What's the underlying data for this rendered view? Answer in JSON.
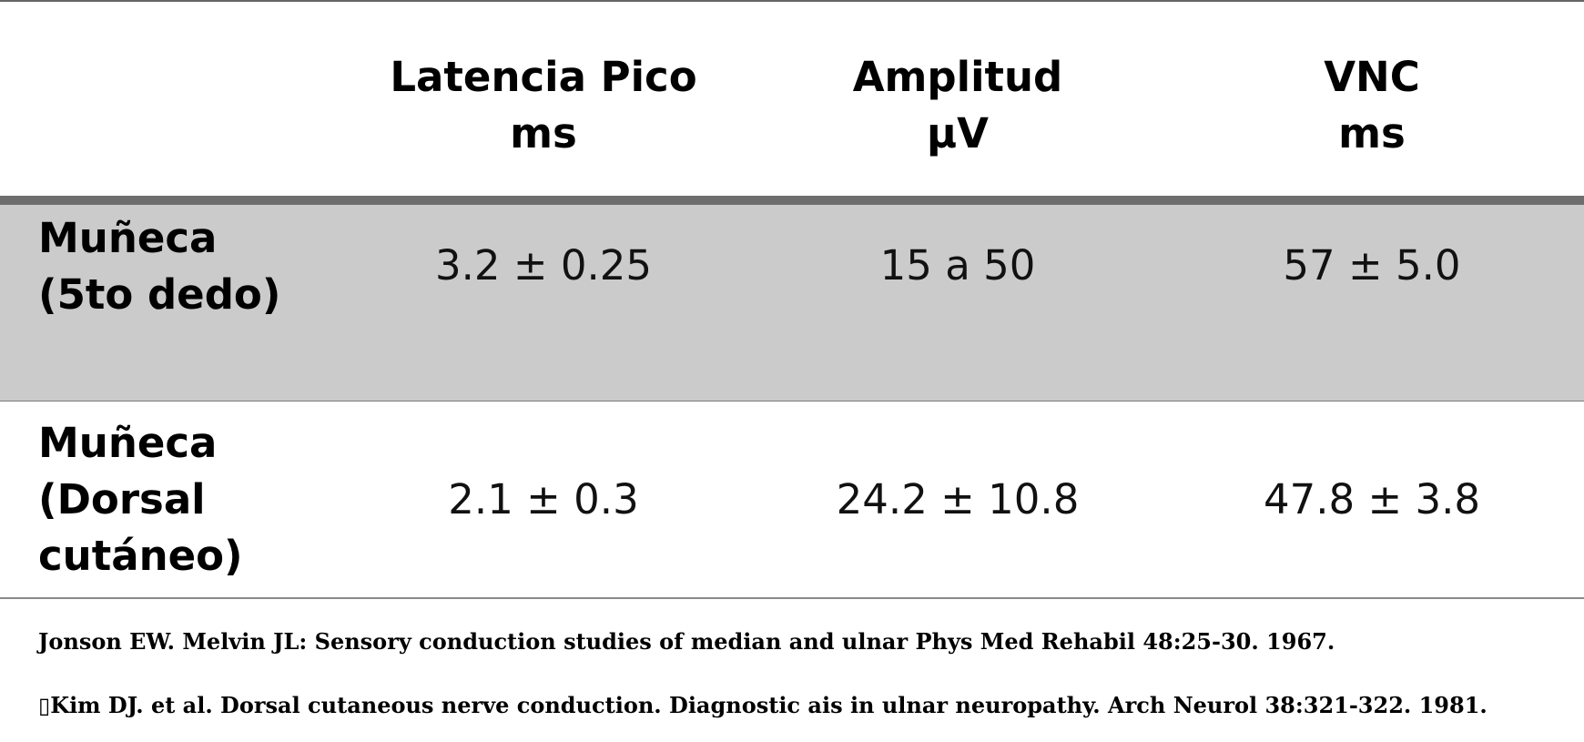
{
  "table": {
    "headers": [
      {
        "line1": "Latencia Pico",
        "line2": "ms"
      },
      {
        "line1": "Amplitud",
        "line2": "μV"
      },
      {
        "line1": "VNC",
        "line2": "ms"
      }
    ],
    "rows": [
      {
        "label_lines": [
          "Muñeca",
          "(5to dedo)"
        ],
        "values": [
          "3.2 ± 0.25",
          "15 a 50",
          "57 ± 5.0"
        ]
      },
      {
        "label_lines": [
          "Muñeca",
          "(Dorsal",
          "cutáneo)"
        ],
        "values": [
          "2.1 ± 0.3",
          "24.2 ± 10.8",
          "47.8 ± 3.8"
        ]
      }
    ]
  },
  "references": [
    "Jonson EW. Melvin JL: Sensory conduction studies of median and ulnar Phys Med Rehabil 48:25-30. 1967.",
    "▯Kim DJ. et al. Dorsal cutaneous nerve conduction. Diagnostic ais in ulnar neuropathy. Arch Neurol 38:321-322. 1981."
  ],
  "colors": {
    "header_rule": "#6e6e6e",
    "shaded_row": "#cbcbcb",
    "text": "#000000"
  }
}
